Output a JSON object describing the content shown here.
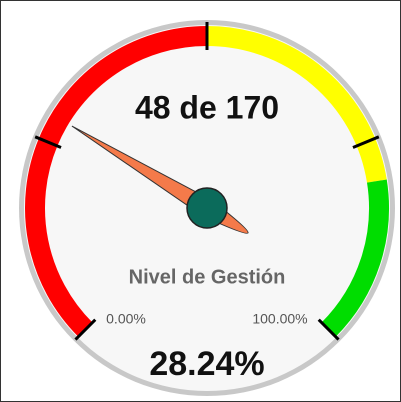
{
  "chart_data": {
    "type": "gauge",
    "title": "48 de 170",
    "label": "Nivel de Gestión",
    "value": 28.24,
    "value_label": "28.24%",
    "ylim": [
      0,
      100
    ],
    "ticks": [
      0,
      25,
      50,
      75,
      100
    ],
    "min_label": "0.00%",
    "max_label": "100.00%",
    "bands": [
      {
        "from": 0,
        "to": 50,
        "color": "#ff0000"
      },
      {
        "from": 50,
        "to": 80,
        "color": "#ffff00"
      },
      {
        "from": 80,
        "to": 100,
        "color": "#00dd00"
      }
    ],
    "needle_color": "#f47a4a",
    "hub_color": "#0b6b5b"
  }
}
